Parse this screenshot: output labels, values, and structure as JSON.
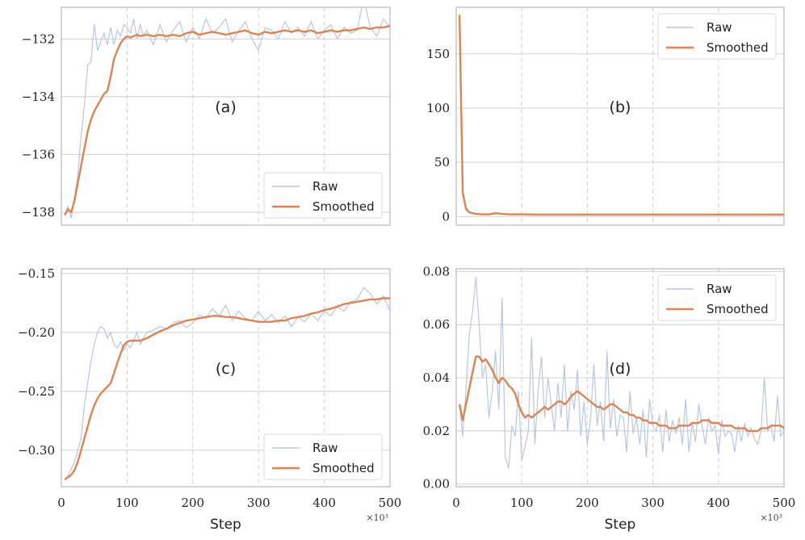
{
  "colors": {
    "raw": "#b7c7e0",
    "smoothed": "#dd8452",
    "grid": "#d3d3d3",
    "spine": "#bdbdbd",
    "vline": "#cfcfcf"
  },
  "xaxis": {
    "label": "Step",
    "multiplier": "×10³",
    "ticks": [
      "0",
      "100",
      "200",
      "300",
      "400",
      "500"
    ],
    "range": [
      0,
      500
    ]
  },
  "chart_data": [
    {
      "id": "a",
      "type": "line",
      "annotation": "(a)",
      "legend": "bottom-right",
      "series_labels": [
        "Raw",
        "Smoothed"
      ],
      "ylim": [
        -138.45,
        -130.9
      ],
      "yticks": [
        -138,
        -136,
        -134,
        -132
      ],
      "ytick_labels": [
        "−138",
        "−136",
        "−134",
        "−132"
      ],
      "raw": {
        "x": [
          5,
          10,
          15,
          20,
          25,
          30,
          35,
          40,
          45,
          50,
          55,
          60,
          65,
          70,
          75,
          80,
          85,
          90,
          95,
          100,
          105,
          110,
          115,
          120,
          125,
          130,
          140,
          150,
          160,
          170,
          180,
          190,
          200,
          210,
          220,
          230,
          240,
          250,
          260,
          270,
          280,
          290,
          300,
          310,
          320,
          330,
          340,
          350,
          360,
          370,
          380,
          390,
          400,
          410,
          420,
          430,
          440,
          450,
          460,
          470,
          480,
          490,
          500
        ],
        "y": [
          -138.1,
          -137.8,
          -138.2,
          -137.5,
          -136.7,
          -135.4,
          -134.3,
          -132.9,
          -132.8,
          -131.5,
          -132.4,
          -132.1,
          -131.8,
          -132.2,
          -131.6,
          -132.2,
          -131.7,
          -131.9,
          -131.5,
          -131.6,
          -131.8,
          -131.3,
          -132,
          -131.5,
          -131.9,
          -131.7,
          -132.2,
          -131.5,
          -132.1,
          -131.7,
          -131.4,
          -132.1,
          -131.6,
          -132,
          -131.3,
          -131.8,
          -131.6,
          -131.3,
          -132.1,
          -131.7,
          -131.4,
          -132,
          -132.4,
          -131.6,
          -131.7,
          -132,
          -131.4,
          -131.8,
          -131.6,
          -131.9,
          -131.4,
          -132,
          -131.7,
          -131.5,
          -132,
          -131.6,
          -131.8,
          -131.7,
          -130.6,
          -131.6,
          -131.9,
          -131.3,
          -131.6
        ]
      },
      "smoothed": {
        "x": [
          5,
          10,
          15,
          20,
          25,
          30,
          35,
          40,
          45,
          50,
          55,
          60,
          65,
          70,
          75,
          80,
          85,
          90,
          95,
          100,
          105,
          110,
          115,
          120,
          130,
          140,
          150,
          160,
          170,
          180,
          190,
          200,
          210,
          220,
          230,
          240,
          250,
          260,
          270,
          280,
          290,
          300,
          310,
          320,
          330,
          340,
          350,
          360,
          370,
          380,
          390,
          400,
          410,
          420,
          430,
          440,
          450,
          460,
          470,
          480,
          490,
          500
        ],
        "y": [
          -138.1,
          -137.9,
          -138.0,
          -137.6,
          -137.0,
          -136.4,
          -135.8,
          -135.2,
          -134.8,
          -134.5,
          -134.3,
          -134.1,
          -133.9,
          -133.8,
          -133.3,
          -132.7,
          -132.4,
          -132.15,
          -132.0,
          -131.9,
          -131.95,
          -131.9,
          -131.85,
          -131.9,
          -131.85,
          -131.9,
          -131.85,
          -131.9,
          -131.85,
          -131.9,
          -131.8,
          -131.75,
          -131.85,
          -131.8,
          -131.75,
          -131.8,
          -131.85,
          -131.8,
          -131.75,
          -131.7,
          -131.8,
          -131.85,
          -131.75,
          -131.8,
          -131.75,
          -131.7,
          -131.75,
          -131.7,
          -131.75,
          -131.7,
          -131.8,
          -131.75,
          -131.7,
          -131.75,
          -131.7,
          -131.7,
          -131.65,
          -131.6,
          -131.65,
          -131.6,
          -131.6,
          -131.55
        ]
      }
    },
    {
      "id": "b",
      "type": "line",
      "annotation": "(b)",
      "legend": "top-right",
      "series_labels": [
        "Raw",
        "Smoothed"
      ],
      "ylim": [
        -8,
        193
      ],
      "yticks": [
        0,
        50,
        100,
        150
      ],
      "ytick_labels": [
        "0",
        "50",
        "100",
        "150"
      ],
      "raw": {
        "x": [
          5,
          10,
          15,
          20,
          25,
          30,
          40,
          50,
          60,
          70,
          80,
          90,
          100,
          120,
          140,
          160,
          180,
          200,
          220,
          240,
          260,
          280,
          300,
          320,
          340,
          360,
          380,
          400,
          420,
          440,
          460,
          480,
          500
        ],
        "y": [
          186,
          25,
          8,
          4,
          3,
          2.5,
          2,
          2,
          3,
          2,
          2,
          2,
          2,
          1.8,
          2,
          2,
          1.8,
          2,
          2,
          2,
          1.8,
          2,
          2,
          1.8,
          2,
          2,
          1.8,
          2,
          2,
          1.8,
          2,
          1.8,
          2
        ]
      },
      "smoothed": {
        "x": [
          5,
          10,
          15,
          20,
          25,
          30,
          40,
          50,
          60,
          70,
          80,
          90,
          100,
          120,
          140,
          160,
          180,
          200,
          220,
          240,
          260,
          280,
          300,
          320,
          340,
          360,
          380,
          400,
          420,
          440,
          460,
          480,
          500
        ],
        "y": [
          186,
          22,
          7,
          4,
          3,
          2.5,
          2,
          2,
          3,
          2.5,
          2,
          2,
          2,
          1.8,
          1.8,
          1.8,
          1.8,
          1.8,
          1.8,
          1.8,
          1.8,
          1.8,
          1.8,
          1.8,
          1.8,
          1.8,
          1.8,
          1.8,
          1.8,
          1.8,
          1.8,
          1.8,
          1.8
        ]
      }
    },
    {
      "id": "c",
      "type": "line",
      "annotation": "(c)",
      "legend": "bottom-right",
      "series_labels": [
        "Raw",
        "Smoothed"
      ],
      "ylim": [
        -0.331,
        -0.146
      ],
      "yticks": [
        -0.3,
        -0.25,
        -0.2,
        -0.15
      ],
      "ytick_labels": [
        "−0.30",
        "−0.25",
        "−0.20",
        "−0.15"
      ],
      "raw": {
        "x": [
          5,
          10,
          15,
          20,
          25,
          30,
          35,
          40,
          45,
          50,
          55,
          60,
          65,
          70,
          75,
          80,
          85,
          90,
          95,
          100,
          105,
          110,
          115,
          120,
          125,
          130,
          140,
          150,
          160,
          170,
          180,
          190,
          200,
          210,
          220,
          230,
          240,
          250,
          260,
          270,
          280,
          290,
          300,
          310,
          320,
          330,
          340,
          350,
          360,
          370,
          380,
          390,
          400,
          410,
          420,
          430,
          440,
          450,
          460,
          470,
          480,
          490,
          500
        ],
        "y": [
          -0.325,
          -0.322,
          -0.316,
          -0.31,
          -0.3,
          -0.29,
          -0.262,
          -0.243,
          -0.225,
          -0.21,
          -0.2,
          -0.195,
          -0.197,
          -0.205,
          -0.2,
          -0.21,
          -0.213,
          -0.208,
          -0.215,
          -0.21,
          -0.213,
          -0.207,
          -0.2,
          -0.21,
          -0.205,
          -0.2,
          -0.198,
          -0.195,
          -0.197,
          -0.192,
          -0.19,
          -0.196,
          -0.192,
          -0.185,
          -0.188,
          -0.18,
          -0.186,
          -0.177,
          -0.19,
          -0.182,
          -0.188,
          -0.19,
          -0.182,
          -0.19,
          -0.185,
          -0.192,
          -0.186,
          -0.195,
          -0.187,
          -0.191,
          -0.184,
          -0.19,
          -0.182,
          -0.186,
          -0.178,
          -0.182,
          -0.174,
          -0.172,
          -0.162,
          -0.167,
          -0.176,
          -0.169,
          -0.182
        ]
      },
      "smoothed": {
        "x": [
          5,
          10,
          15,
          20,
          25,
          30,
          35,
          40,
          45,
          50,
          55,
          60,
          65,
          70,
          75,
          80,
          85,
          90,
          95,
          100,
          105,
          110,
          115,
          120,
          130,
          140,
          150,
          160,
          170,
          180,
          190,
          200,
          210,
          220,
          230,
          240,
          250,
          260,
          270,
          280,
          290,
          300,
          310,
          320,
          330,
          340,
          350,
          360,
          370,
          380,
          390,
          400,
          410,
          420,
          430,
          440,
          450,
          460,
          470,
          480,
          490,
          500
        ],
        "y": [
          -0.325,
          -0.323,
          -0.321,
          -0.317,
          -0.31,
          -0.3,
          -0.29,
          -0.28,
          -0.27,
          -0.262,
          -0.256,
          -0.252,
          -0.249,
          -0.246,
          -0.243,
          -0.235,
          -0.226,
          -0.218,
          -0.211,
          -0.208,
          -0.207,
          -0.207,
          -0.207,
          -0.207,
          -0.205,
          -0.202,
          -0.199,
          -0.197,
          -0.194,
          -0.192,
          -0.19,
          -0.189,
          -0.188,
          -0.187,
          -0.186,
          -0.186,
          -0.187,
          -0.187,
          -0.188,
          -0.189,
          -0.19,
          -0.191,
          -0.191,
          -0.191,
          -0.19,
          -0.19,
          -0.188,
          -0.187,
          -0.186,
          -0.184,
          -0.183,
          -0.181,
          -0.18,
          -0.178,
          -0.176,
          -0.175,
          -0.174,
          -0.173,
          -0.172,
          -0.172,
          -0.171,
          -0.171
        ]
      }
    },
    {
      "id": "d",
      "type": "line",
      "annotation": "(d)",
      "legend": "top-right",
      "series_labels": [
        "Raw",
        "Smoothed"
      ],
      "ylim": [
        -0.001,
        0.081
      ],
      "yticks": [
        0,
        0.02,
        0.04,
        0.06,
        0.08
      ],
      "ytick_labels": [
        "0.00",
        "0.02",
        "0.04",
        "0.06",
        "0.08"
      ],
      "raw": {
        "x": [
          5,
          10,
          15,
          20,
          25,
          30,
          35,
          40,
          45,
          50,
          55,
          60,
          65,
          70,
          75,
          80,
          85,
          90,
          95,
          100,
          105,
          110,
          115,
          120,
          125,
          130,
          135,
          140,
          145,
          150,
          155,
          160,
          165,
          170,
          175,
          180,
          185,
          190,
          195,
          200,
          205,
          210,
          215,
          220,
          225,
          230,
          235,
          240,
          245,
          250,
          255,
          260,
          265,
          270,
          275,
          280,
          285,
          290,
          295,
          300,
          305,
          310,
          315,
          320,
          325,
          330,
          335,
          340,
          345,
          350,
          355,
          360,
          365,
          370,
          375,
          380,
          385,
          390,
          395,
          400,
          405,
          410,
          415,
          420,
          425,
          430,
          435,
          440,
          445,
          450,
          455,
          460,
          465,
          470,
          475,
          480,
          485,
          490,
          495,
          500
        ],
        "y": [
          0.03,
          0.018,
          0.036,
          0.056,
          0.065,
          0.078,
          0.06,
          0.04,
          0.045,
          0.025,
          0.035,
          0.05,
          0.028,
          0.07,
          0.01,
          0.006,
          0.022,
          0.018,
          0.035,
          0.009,
          0.014,
          0.02,
          0.055,
          0.015,
          0.035,
          0.048,
          0.025,
          0.04,
          0.03,
          0.02,
          0.038,
          0.025,
          0.045,
          0.02,
          0.035,
          0.028,
          0.043,
          0.018,
          0.031,
          0.015,
          0.025,
          0.045,
          0.022,
          0.031,
          0.016,
          0.05,
          0.021,
          0.032,
          0.018,
          0.026,
          0.025,
          0.012,
          0.035,
          0.019,
          0.025,
          0.015,
          0.028,
          0.01,
          0.032,
          0.022,
          0.02,
          0.026,
          0.012,
          0.028,
          0.016,
          0.024,
          0.019,
          0.025,
          0.015,
          0.032,
          0.012,
          0.023,
          0.016,
          0.03,
          0.022,
          0.015,
          0.025,
          0.02,
          0.022,
          0.011,
          0.024,
          0.018,
          0.02,
          0.019,
          0.012,
          0.022,
          0.016,
          0.023,
          0.018,
          0.021,
          0.017,
          0.015,
          0.02,
          0.04,
          0.02,
          0.022,
          0.016,
          0.033,
          0.018,
          0.02
        ]
      },
      "smoothed": {
        "x": [
          5,
          10,
          15,
          20,
          25,
          30,
          35,
          40,
          45,
          50,
          55,
          60,
          65,
          70,
          75,
          80,
          85,
          90,
          95,
          100,
          105,
          110,
          115,
          120,
          125,
          130,
          135,
          140,
          145,
          150,
          155,
          160,
          165,
          170,
          175,
          180,
          185,
          190,
          195,
          200,
          205,
          210,
          215,
          220,
          225,
          230,
          235,
          240,
          245,
          250,
          255,
          260,
          265,
          270,
          275,
          280,
          285,
          290,
          295,
          300,
          305,
          310,
          315,
          320,
          325,
          330,
          335,
          340,
          345,
          350,
          355,
          360,
          365,
          370,
          375,
          380,
          385,
          390,
          395,
          400,
          405,
          410,
          415,
          420,
          425,
          430,
          435,
          440,
          445,
          450,
          455,
          460,
          465,
          470,
          475,
          480,
          485,
          490,
          495,
          500
        ],
        "y": [
          0.03,
          0.024,
          0.03,
          0.036,
          0.042,
          0.048,
          0.048,
          0.046,
          0.047,
          0.045,
          0.043,
          0.04,
          0.038,
          0.04,
          0.039,
          0.037,
          0.036,
          0.034,
          0.03,
          0.027,
          0.025,
          0.026,
          0.025,
          0.026,
          0.027,
          0.028,
          0.029,
          0.028,
          0.029,
          0.03,
          0.031,
          0.031,
          0.03,
          0.031,
          0.033,
          0.034,
          0.035,
          0.034,
          0.033,
          0.032,
          0.031,
          0.03,
          0.029,
          0.029,
          0.028,
          0.029,
          0.03,
          0.03,
          0.029,
          0.028,
          0.027,
          0.027,
          0.026,
          0.026,
          0.025,
          0.025,
          0.024,
          0.024,
          0.023,
          0.023,
          0.023,
          0.022,
          0.022,
          0.022,
          0.021,
          0.021,
          0.021,
          0.022,
          0.022,
          0.022,
          0.022,
          0.023,
          0.023,
          0.023,
          0.024,
          0.024,
          0.024,
          0.023,
          0.023,
          0.023,
          0.022,
          0.022,
          0.022,
          0.022,
          0.021,
          0.021,
          0.021,
          0.021,
          0.02,
          0.02,
          0.02,
          0.02,
          0.021,
          0.021,
          0.021,
          0.022,
          0.022,
          0.022,
          0.022,
          0.021
        ]
      }
    }
  ]
}
